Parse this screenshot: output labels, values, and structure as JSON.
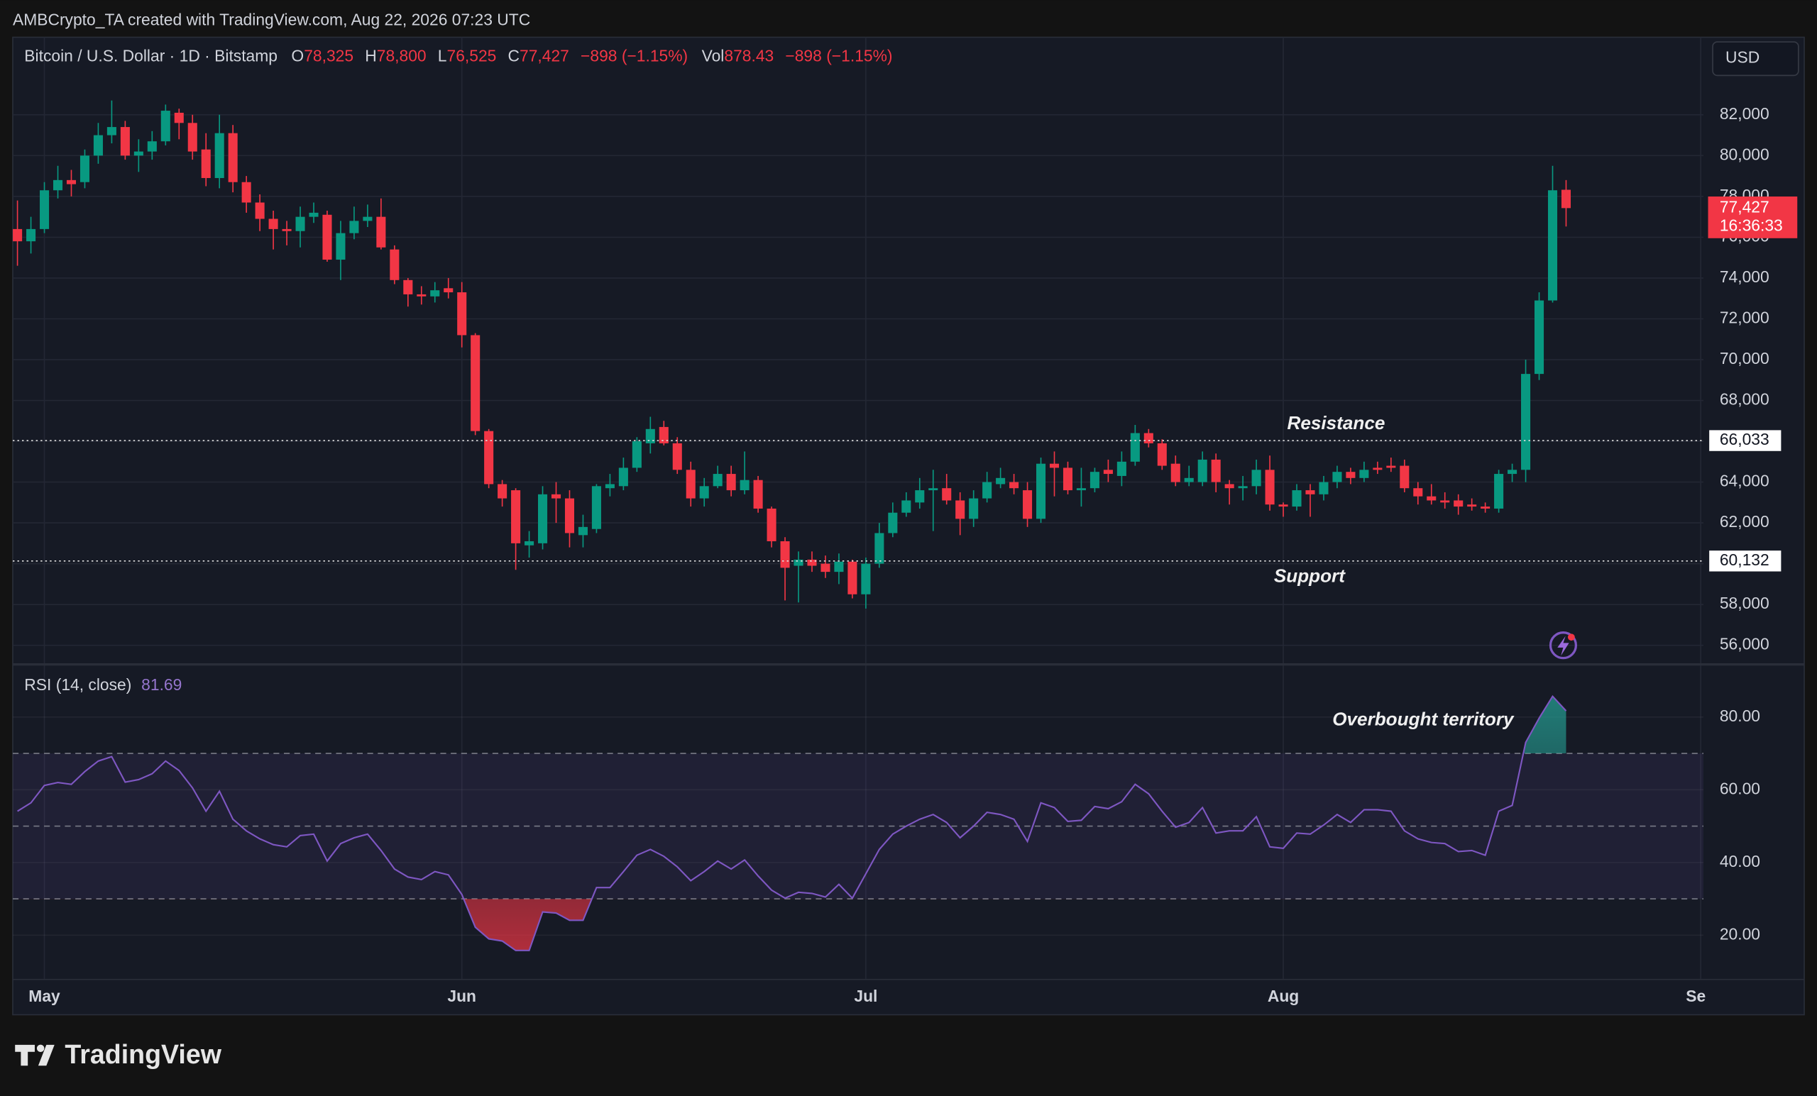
{
  "header": {
    "credit": "AMBCrypto_TA created with TradingView.com, Aug 22, 2026 07:23 UTC",
    "symbol": "Bitcoin / U.S. Dollar · 1D · Bitstamp",
    "ohlc": [
      {
        "key": "O",
        "label": "78,325"
      },
      {
        "key": "H",
        "label": "78,800"
      },
      {
        "key": "L",
        "label": "76,525"
      },
      {
        "key": "C",
        "label": "77,427"
      }
    ],
    "change": "−898 (−1.15%)",
    "vol_key": "Vol",
    "vol": "878.43",
    "vol_change": "−898 (−1.15%)",
    "currency": "USD"
  },
  "footer": {
    "brand": "TradingView"
  },
  "chart_data": [
    {
      "type": "candlestick",
      "up_color": "#089981",
      "down_color": "#f23645",
      "grid": true,
      "xlim": [
        -0.35,
        125.2
      ],
      "xticks": [
        {
          "value": 2,
          "label": "May"
        },
        {
          "value": 33,
          "label": "Jun"
        },
        {
          "value": 63,
          "label": "Jul"
        },
        {
          "value": 94,
          "label": "Aug"
        },
        {
          "value": 125,
          "label": "Sep"
        }
      ],
      "ylim": [
        55150,
        85800
      ],
      "yticks": [
        {
          "value": 56000,
          "label": "56,000"
        },
        {
          "value": 58000,
          "label": "58,000"
        },
        {
          "value": 60000,
          "label": "60,000"
        },
        {
          "value": 62000,
          "label": "62,000"
        },
        {
          "value": 64000,
          "label": "64,000"
        },
        {
          "value": 66000,
          "label": "66,000"
        },
        {
          "value": 68000,
          "label": "68,000"
        },
        {
          "value": 70000,
          "label": "70,000"
        },
        {
          "value": 72000,
          "label": "72,000"
        },
        {
          "value": 74000,
          "label": "74,000"
        },
        {
          "value": 76000,
          "label": "76,000"
        },
        {
          "value": 78000,
          "label": "78,000"
        },
        {
          "value": 80000,
          "label": "80,000"
        },
        {
          "value": 82000,
          "label": "82,000"
        }
      ],
      "open": [
        76400,
        75800,
        76400,
        78300,
        78800,
        78700,
        80000,
        81000,
        81400,
        80000,
        80200,
        80700,
        82100,
        81600,
        80300,
        78900,
        81100,
        78700,
        77700,
        76900,
        76400,
        76300,
        77000,
        77100,
        74900,
        76200,
        76800,
        77000,
        75400,
        73900,
        73200,
        73100,
        73500,
        73300,
        71200,
        66500,
        63900,
        63600,
        60900,
        61000,
        63400,
        63200,
        61400,
        61700,
        63700,
        63800,
        64700,
        65900,
        66700,
        65900,
        64600,
        63200,
        63800,
        64400,
        63600,
        64100,
        62700,
        61100,
        59900,
        60200,
        60000,
        59600,
        60100,
        58500,
        60000,
        61500,
        62500,
        63000,
        63600,
        63700,
        63100,
        62200,
        63200,
        63900,
        64000,
        63600,
        62200,
        64900,
        64700,
        63600,
        63700,
        64600,
        64300,
        65000,
        66400,
        65900,
        64900,
        64000,
        64000,
        65100,
        63900,
        63700,
        63800,
        64600,
        62900,
        62800,
        63600,
        63400,
        64000,
        64500,
        64200,
        64700,
        64800,
        64800,
        63700,
        63300,
        63100,
        63100,
        62900,
        62800,
        62700,
        64400,
        64600,
        69300,
        72900,
        78325
      ],
      "high": [
        77800,
        77000,
        78700,
        79500,
        79300,
        80300,
        81600,
        82700,
        81700,
        80800,
        81200,
        82500,
        82300,
        82000,
        81100,
        82000,
        81500,
        79000,
        78100,
        77300,
        76800,
        77500,
        77700,
        77300,
        76800,
        77500,
        77600,
        77900,
        75600,
        74000,
        73600,
        73800,
        74000,
        73800,
        71300,
        66600,
        64100,
        63700,
        61600,
        63800,
        64000,
        63600,
        62400,
        63900,
        64400,
        65200,
        66200,
        67200,
        67000,
        66200,
        65000,
        64200,
        64800,
        64800,
        65500,
        64300,
        62800,
        61300,
        60600,
        60600,
        60400,
        60500,
        60200,
        60300,
        62000,
        63000,
        63500,
        64200,
        64600,
        64400,
        63500,
        63600,
        64500,
        64700,
        64400,
        64000,
        65200,
        65500,
        65000,
        64700,
        64700,
        65100,
        65500,
        66800,
        66600,
        66100,
        65300,
        64800,
        65500,
        65400,
        64100,
        64300,
        65100,
        65300,
        63000,
        63900,
        63900,
        64300,
        64800,
        64700,
        65000,
        65000,
        65200,
        65100,
        64000,
        63900,
        63500,
        63400,
        63200,
        63000,
        64600,
        64900,
        70000,
        73300,
        79500,
        78800
      ],
      "low": [
        74600,
        75200,
        76200,
        77900,
        78000,
        78400,
        79600,
        80600,
        79800,
        79200,
        79800,
        80500,
        80800,
        79800,
        78500,
        78400,
        78200,
        77200,
        76300,
        75400,
        75600,
        75500,
        76700,
        74800,
        73900,
        75900,
        76500,
        75400,
        73700,
        72600,
        72700,
        72800,
        73000,
        70600,
        66300,
        63700,
        62800,
        59700,
        60300,
        60700,
        62000,
        60800,
        60800,
        61500,
        63300,
        63600,
        64500,
        65400,
        65800,
        64400,
        62800,
        62800,
        63700,
        63300,
        63400,
        62500,
        60800,
        58200,
        58100,
        59600,
        59300,
        59000,
        58300,
        57800,
        59800,
        61300,
        62300,
        62700,
        61600,
        62900,
        61400,
        61800,
        63000,
        63700,
        63400,
        61800,
        62000,
        63300,
        63400,
        62800,
        63500,
        64000,
        63800,
        64800,
        65700,
        64600,
        63800,
        63800,
        63800,
        63500,
        62900,
        63100,
        63400,
        62600,
        62300,
        62600,
        62300,
        63100,
        63700,
        63900,
        64000,
        64400,
        64500,
        63500,
        62900,
        62900,
        62700,
        62400,
        62600,
        62500,
        62500,
        64000,
        64000,
        69000,
        72800,
        76525
      ],
      "close": [
        75800,
        76400,
        78300,
        78800,
        78600,
        80000,
        81000,
        81400,
        80000,
        80200,
        80700,
        82200,
        81600,
        80200,
        78900,
        81100,
        78700,
        77700,
        76900,
        76400,
        76300,
        77000,
        77200,
        74900,
        76200,
        76800,
        77000,
        75500,
        73900,
        73200,
        73100,
        73400,
        73300,
        71200,
        66500,
        63900,
        63200,
        61000,
        61100,
        63400,
        63200,
        61500,
        61800,
        63800,
        63900,
        64700,
        66000,
        66600,
        65900,
        64600,
        63200,
        63800,
        64400,
        63600,
        64100,
        62700,
        61100,
        59800,
        60200,
        59900,
        59600,
        60100,
        58500,
        60000,
        61500,
        62500,
        63100,
        63600,
        63700,
        63100,
        62200,
        63200,
        64000,
        64200,
        63700,
        62200,
        64900,
        64700,
        63600,
        63700,
        64500,
        64400,
        65000,
        66400,
        65900,
        64800,
        64000,
        64200,
        65100,
        64000,
        63700,
        63800,
        64600,
        62900,
        62800,
        63600,
        63400,
        64000,
        64500,
        64200,
        64600,
        64600,
        64700,
        63700,
        63300,
        63100,
        63000,
        62800,
        62800,
        62700,
        64400,
        64600,
        69300,
        72900,
        78300,
        77427
      ],
      "last_price": {
        "value": 77427,
        "label": "77,427",
        "countdown": "16:36:33"
      },
      "levels": [
        {
          "name": "Resistance",
          "value": 66033,
          "label": "66,033"
        },
        {
          "name": "Support",
          "value": 60132,
          "label": "60,132"
        }
      ]
    },
    {
      "type": "line",
      "title": "RSI (14, close)",
      "color": "#7e57c2",
      "value_label": "81.69",
      "annotation": "Overbought territory",
      "ylim": [
        8,
        94
      ],
      "yticks": [
        {
          "value": 20,
          "label": "20.00"
        },
        {
          "value": 40,
          "label": "40.00"
        },
        {
          "value": 60,
          "label": "60.00"
        },
        {
          "value": 80,
          "label": "80.00"
        }
      ],
      "levels": [
        70,
        50,
        30
      ],
      "values": [
        54.1,
        56.4,
        61.2,
        62,
        61.5,
        65,
        67.9,
        69.1,
        62.1,
        62.8,
        64.4,
        67.9,
        65.3,
        60.5,
        54.1,
        59.6,
        51.9,
        48.7,
        46.5,
        44.9,
        44.3,
        47.4,
        47.8,
        40.4,
        45.2,
        46.8,
        47.8,
        43.3,
        38.2,
        36,
        35.3,
        37.5,
        36.6,
        31.2,
        22.2,
        19,
        18.4,
        15.8,
        15.8,
        26.4,
        26.1,
        24.1,
        24.1,
        33.1,
        33.1,
        37.5,
        42,
        43.6,
        41.7,
        38.8,
        35,
        37.5,
        40.4,
        38.2,
        40.7,
        36.3,
        32.4,
        30.2,
        31.8,
        31.5,
        30.5,
        34,
        30.2,
        36.9,
        43.6,
        47.8,
        50,
        51.9,
        53.2,
        51,
        46.8,
        50,
        53.8,
        53.2,
        51.9,
        45.8,
        56.4,
        55.1,
        51.3,
        51.6,
        55.4,
        54.8,
        56.7,
        61.5,
        58.9,
        54.1,
        49.7,
        51,
        55.1,
        48.1,
        48.7,
        48.7,
        52.6,
        44.3,
        43.9,
        48.1,
        47.8,
        50.3,
        53.2,
        51,
        54.5,
        54.5,
        54.1,
        48.7,
        46.5,
        45.5,
        45.2,
        43,
        43.3,
        42,
        54.1,
        55.7,
        73,
        79.7,
        85.7,
        81.69
      ]
    }
  ]
}
